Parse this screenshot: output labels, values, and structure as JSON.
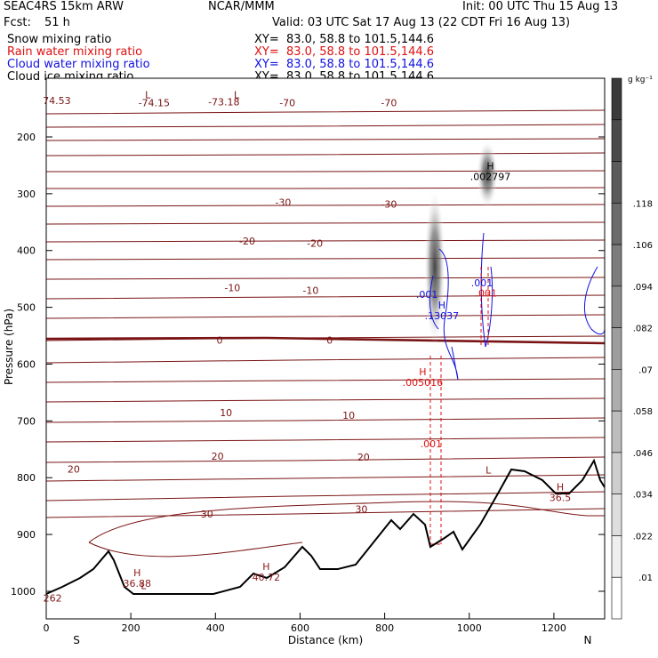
{
  "header": {
    "model": "SEAC4RS 15km ARW",
    "org": "NCAR/MMM",
    "init": "Init: 00 UTC Thu 15 Aug 13",
    "fcst_label": "Fcst:",
    "fcst_value": "51 h",
    "valid": "Valid: 03 UTC Sat 17 Aug 13 (22 CDT Fri 16 Aug 13)"
  },
  "fields": [
    {
      "label": "Snow mixing ratio",
      "xy": "XY=  83.0, 58.8 to 101.5,144.6",
      "color": "#000000"
    },
    {
      "label": "Rain water mixing ratio",
      "xy": "XY=  83.0, 58.8 to 101.5,144.6",
      "color": "#e01010"
    },
    {
      "label": "Cloud water mixing ratio",
      "xy": "XY=  83.0, 58.8 to 101.5,144.6",
      "color": "#1010e0"
    },
    {
      "label": "Cloud ice mixing ratio",
      "xy": "XY=  83.0, 58.8 to 101.5,144.6",
      "color": "#000000"
    }
  ],
  "colorbar": {
    "unit": "g kg⁻¹",
    "ticks": [
      ".01",
      ".022",
      ".034",
      ".046",
      ".058",
      ".07",
      ".082",
      ".094",
      ".106",
      ".118"
    ]
  },
  "chart_data": {
    "type": "cross-section",
    "xlabel": "Distance (km)",
    "ylabel": "Pressure (hPa)",
    "xlim": [
      0,
      1320
    ],
    "ylim": [
      1050,
      130
    ],
    "xticks": [
      0,
      200,
      400,
      600,
      800,
      1000,
      1200
    ],
    "yticks": [
      200,
      300,
      400,
      500,
      600,
      700,
      800,
      900,
      1000
    ],
    "x_endpoints": {
      "left": "S",
      "right": "N"
    },
    "temperature_contour_labels": [
      {
        "text": "74.53",
        "x": 25,
        "p": 136
      },
      {
        "text": "-74.15",
        "x": 255,
        "p": 140
      },
      {
        "text": "L",
        "x": 240,
        "p": 126
      },
      {
        "text": "L",
        "x": 450,
        "p": 126
      },
      {
        "text": "-73.18",
        "x": 420,
        "p": 138
      },
      {
        "text": "-70",
        "x": 570,
        "p": 140
      },
      {
        "text": "-70",
        "x": 810,
        "p": 140
      },
      {
        "text": "-30",
        "x": 560,
        "p": 315
      },
      {
        "text": "-30",
        "x": 810,
        "p": 318
      },
      {
        "text": "-20",
        "x": 475,
        "p": 383
      },
      {
        "text": "-20",
        "x": 635,
        "p": 387
      },
      {
        "text": "-10",
        "x": 440,
        "p": 465
      },
      {
        "text": "-10",
        "x": 625,
        "p": 470
      },
      {
        "text": "0",
        "x": 410,
        "p": 558
      },
      {
        "text": "0",
        "x": 670,
        "p": 558
      },
      {
        "text": "10",
        "x": 425,
        "p": 685
      },
      {
        "text": "10",
        "x": 715,
        "p": 690
      },
      {
        "text": "20",
        "x": 65,
        "p": 785
      },
      {
        "text": "20",
        "x": 405,
        "p": 762
      },
      {
        "text": "20",
        "x": 750,
        "p": 764
      },
      {
        "text": "30",
        "x": 380,
        "p": 864
      },
      {
        "text": "30",
        "x": 745,
        "p": 855
      }
    ],
    "maxima": [
      {
        "mark": "H",
        "value": "36.88",
        "x": 215,
        "p": 986,
        "color": "#8b1a1a"
      },
      {
        "mark": "H",
        "value": "40.72",
        "x": 520,
        "p": 975,
        "color": "#8b1a1a"
      },
      {
        "mark": "H",
        "value": "36.5",
        "x": 1215,
        "p": 835,
        "color": "#8b1a1a"
      },
      {
        "mark": "H",
        "value": ".002797",
        "x": 1050,
        "p": 270,
        "color": "#000000"
      },
      {
        "mark": "H",
        "value": ".13037",
        "x": 935,
        "p": 515,
        "color": "#1010e0"
      },
      {
        "mark": "H",
        "value": ".005016",
        "x": 890,
        "p": 632,
        "color": "#e01010"
      }
    ],
    "mixing_ratio_labels": [
      {
        "text": ".001",
        "x": 900,
        "p": 477,
        "color": "#1010e0"
      },
      {
        "text": ".001",
        "x": 1030,
        "p": 457,
        "color": "#1010e0"
      },
      {
        "text": ".001",
        "x": 1040,
        "p": 475,
        "color": "#e01010"
      },
      {
        "text": ".001",
        "x": 910,
        "p": 740,
        "color": "#e01010"
      }
    ],
    "terrain_min": [
      {
        "text": "L",
        "x": 230,
        "p": 990
      },
      {
        "text": "L",
        "x": 1045,
        "p": 786
      },
      {
        "text": "262",
        "x": 15,
        "p": 1012
      }
    ]
  }
}
